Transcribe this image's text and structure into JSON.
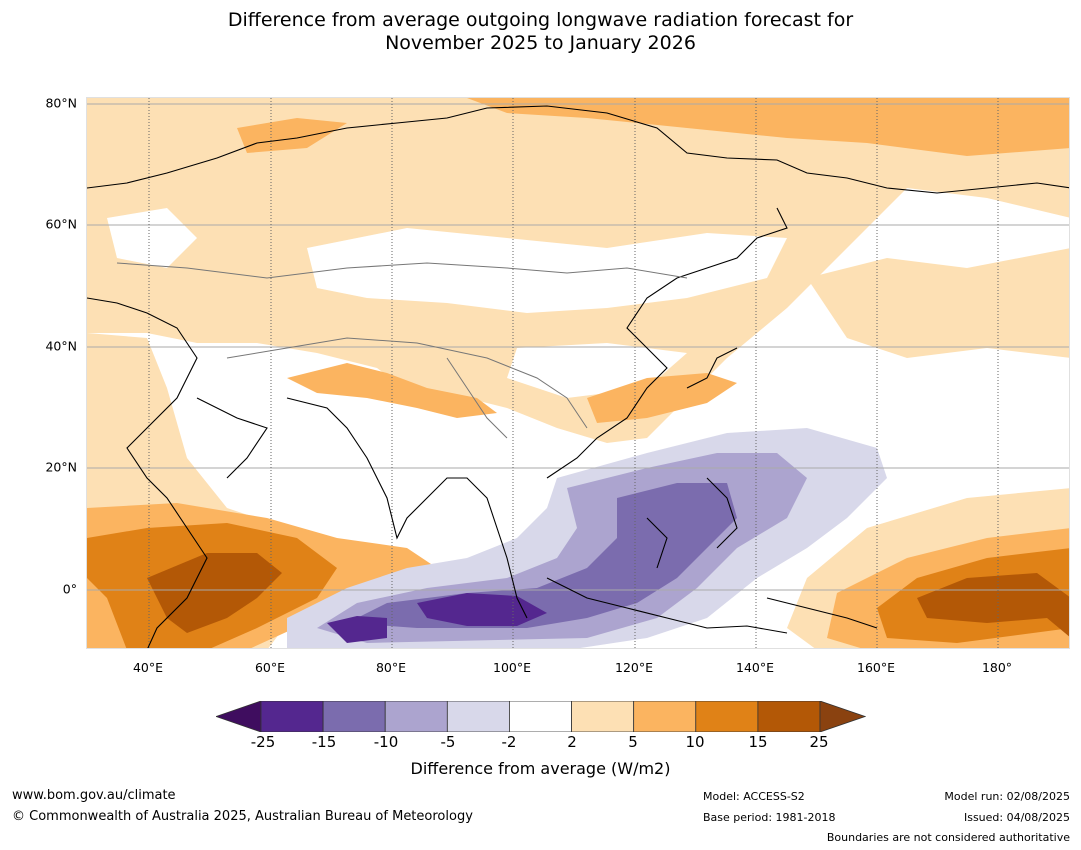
{
  "title": {
    "line1": "Difference from average outgoing longwave radiation forecast for",
    "line2": "November 2025 to January 2026"
  },
  "map": {
    "lat_labels": [
      "80°N",
      "60°N",
      "40°N",
      "20°N",
      "0°"
    ],
    "lon_labels": [
      "40°E",
      "60°E",
      "80°E",
      "100°E",
      "120°E",
      "140°E",
      "160°E",
      "180°"
    ]
  },
  "colorbar": {
    "ticks": [
      "-25",
      "-15",
      "-10",
      "-5",
      "-2",
      "2",
      "5",
      "10",
      "15",
      "25"
    ],
    "colors": [
      "#3f0d5f",
      "#54278f",
      "#7b6cae",
      "#aca4cf",
      "#d8d8ea",
      "#ffffff",
      "#fde0b4",
      "#fbb460",
      "#e08217",
      "#b35806",
      "#8a4210"
    ],
    "label": "Difference from average (W/m2)"
  },
  "footer": {
    "website": "www.bom.gov.au/climate",
    "copyright": "© Commonwealth of Australia 2025, Australian Bureau of Meteorology",
    "model": "Model: ACCESS-S2",
    "base_period": "Base period: 1981-2018",
    "model_run": "Model run: 02/08/2025",
    "issued": "Issued: 04/08/2025",
    "disclaimer": "Boundaries are not considered authoritative"
  }
}
